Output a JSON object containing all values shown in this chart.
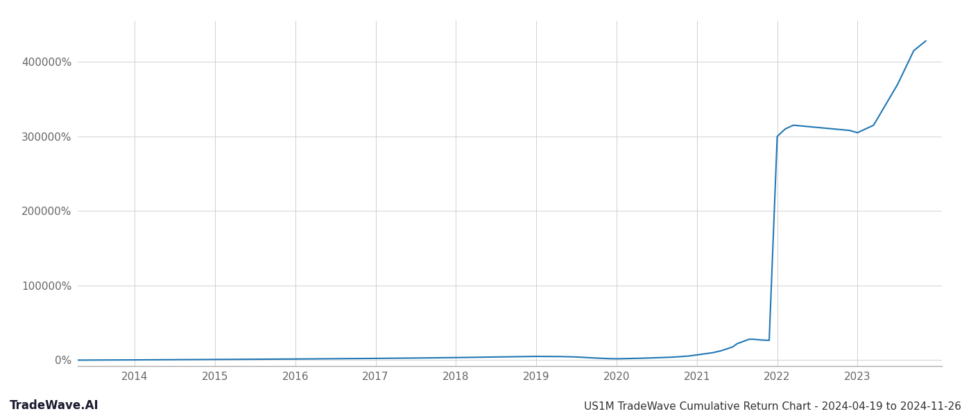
{
  "title": "US1M TradeWave Cumulative Return Chart - 2024-04-19 to 2024-11-26",
  "watermark": "TradeWave.AI",
  "line_color": "#2077b4",
  "background_color": "#ffffff",
  "grid_color": "#cccccc",
  "x_years": [
    2014,
    2015,
    2016,
    2017,
    2018,
    2019,
    2020,
    2021,
    2022,
    2023
  ],
  "data_x": [
    2013.29,
    2013.5,
    2014.0,
    2014.5,
    2015.0,
    2015.5,
    2016.0,
    2016.5,
    2017.0,
    2017.5,
    2018.0,
    2018.5,
    2019.0,
    2019.3,
    2019.5,
    2019.7,
    2019.9,
    2020.0,
    2020.1,
    2020.3,
    2020.5,
    2020.7,
    2020.9,
    2021.0,
    2021.1,
    2021.2,
    2021.3,
    2021.4,
    2021.45,
    2021.5,
    2021.6,
    2021.65,
    2021.7,
    2021.8,
    2021.9,
    2022.0,
    2022.1,
    2022.2,
    2022.5,
    2022.7,
    2022.9,
    2023.0,
    2023.2,
    2023.5,
    2023.7,
    2023.85
  ],
  "data_y": [
    0,
    100,
    300,
    600,
    900,
    1200,
    1500,
    1900,
    2300,
    2800,
    3400,
    4200,
    5000,
    4800,
    4200,
    3000,
    2000,
    1800,
    2000,
    2500,
    3200,
    4000,
    5500,
    7000,
    8500,
    10000,
    12500,
    16000,
    18000,
    22000,
    26000,
    28000,
    28000,
    27000,
    26500,
    300000,
    310000,
    315000,
    312000,
    310000,
    308000,
    305000,
    315000,
    370000,
    415000,
    428000
  ],
  "yticks": [
    0,
    100000,
    200000,
    300000,
    400000
  ],
  "ytick_labels": [
    "0%",
    "100000%",
    "200000%",
    "300000%",
    "400000%"
  ],
  "ylim": [
    -8000,
    455000
  ],
  "xlim": [
    2013.29,
    2024.05
  ],
  "line_width": 1.5,
  "title_fontsize": 11,
  "watermark_fontsize": 12,
  "tick_fontsize": 11,
  "tick_color": "#666666",
  "spine_color": "#aaaaaa"
}
